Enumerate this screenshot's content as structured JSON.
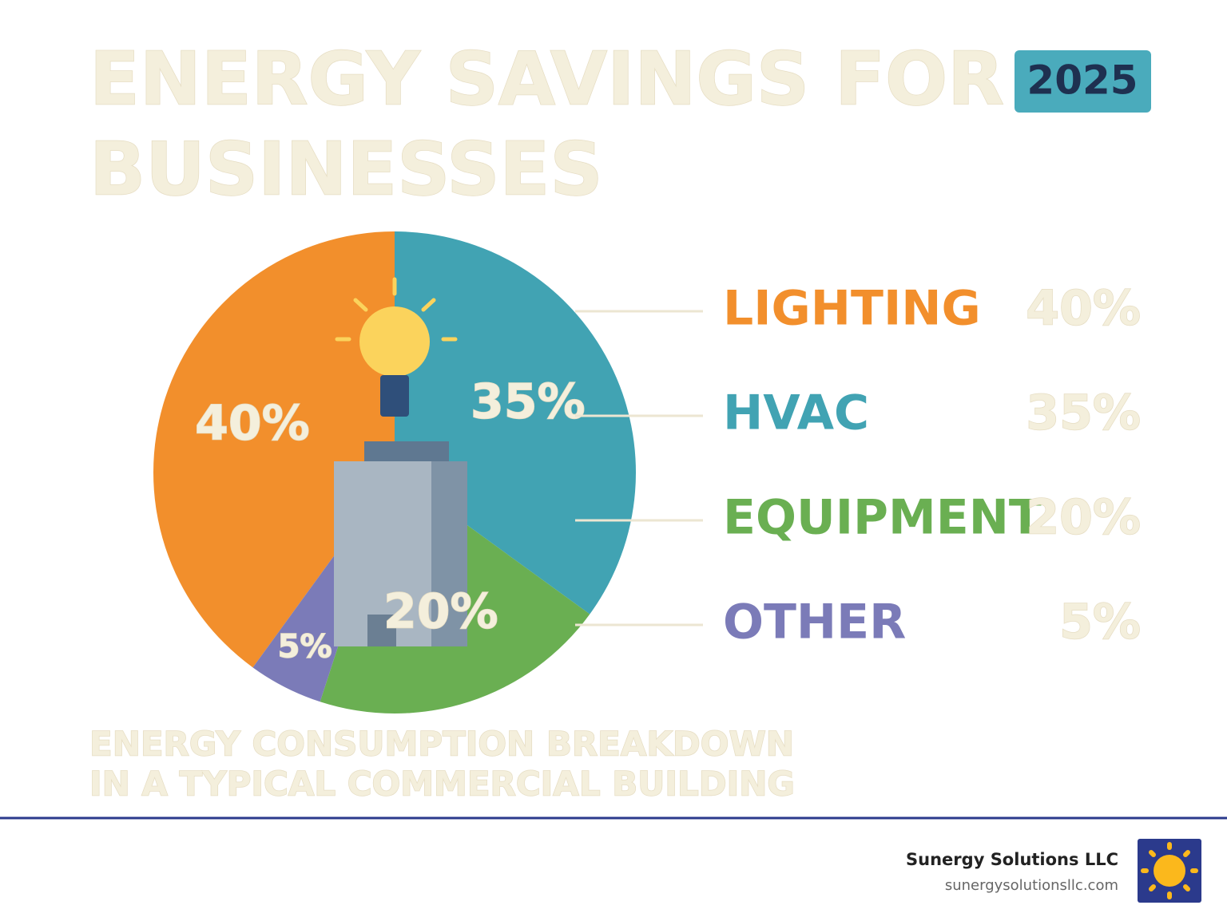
{
  "chart_data": {
    "type": "pie",
    "title": [
      "ENERGY SAVINGS FOR",
      "BUSINESSES"
    ],
    "subtitle": [
      "ENERGY CONSUMPTION BREAKDOWN",
      "IN A TYPICAL COMMERCIAL BUILDING"
    ],
    "categories": [
      "LIGHTING",
      "HVAC",
      "EQUIPMENT",
      "OTHER"
    ],
    "values": [
      40,
      35,
      20,
      5
    ],
    "value_labels": [
      "40%",
      "35%",
      "20%",
      "5%"
    ],
    "colors": [
      "#f28f2c",
      "#41a3b3",
      "#6aaf52",
      "#7b7bb8"
    ]
  },
  "badge": "2025",
  "footer": {
    "company": "Sunergy Solutions LLC",
    "url": "sunergysolutionsllc.com"
  }
}
